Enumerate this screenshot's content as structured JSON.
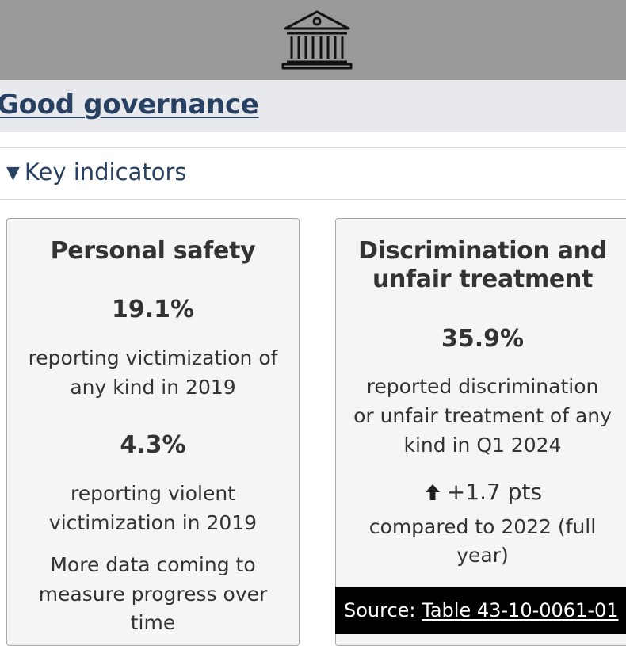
{
  "banner": {
    "icon": "government-building-icon"
  },
  "header": {
    "title": "Good governance"
  },
  "details": {
    "summary": "Key indicators",
    "caret": "▼"
  },
  "cards": [
    {
      "title": "Personal safety",
      "metrics": [
        {
          "value": "19.1%",
          "desc_line1": "reporting victimization of",
          "desc_line2": "any kind in 2019"
        },
        {
          "value": "4.3%",
          "desc_line1": "reporting violent",
          "desc_line2": "victimization in 2019"
        }
      ],
      "note_line1": "More data coming to",
      "note_line2": "measure progress over",
      "note_line3": "time"
    },
    {
      "title_line1": "Discrimination and",
      "title_line2": "unfair treatment",
      "value": "35.9%",
      "desc_line1": "reported discrimination",
      "desc_line2": "or unfair treatment of any",
      "desc_line3": "kind in Q1 2024",
      "change": {
        "icon": "arrow-up-icon",
        "text": "+1.7 pts",
        "compare_line1": "compared to 2022 (full",
        "compare_line2": "year)"
      },
      "source": {
        "label": "Source: ",
        "link_text": "Table 43-10-0061-01"
      }
    }
  ],
  "colors": {
    "banner_bg": "#999999",
    "title_bar_bg": "#e8e9ec",
    "link": "#284162",
    "card_bg": "#f5f5f5",
    "source_bg": "#000000"
  }
}
